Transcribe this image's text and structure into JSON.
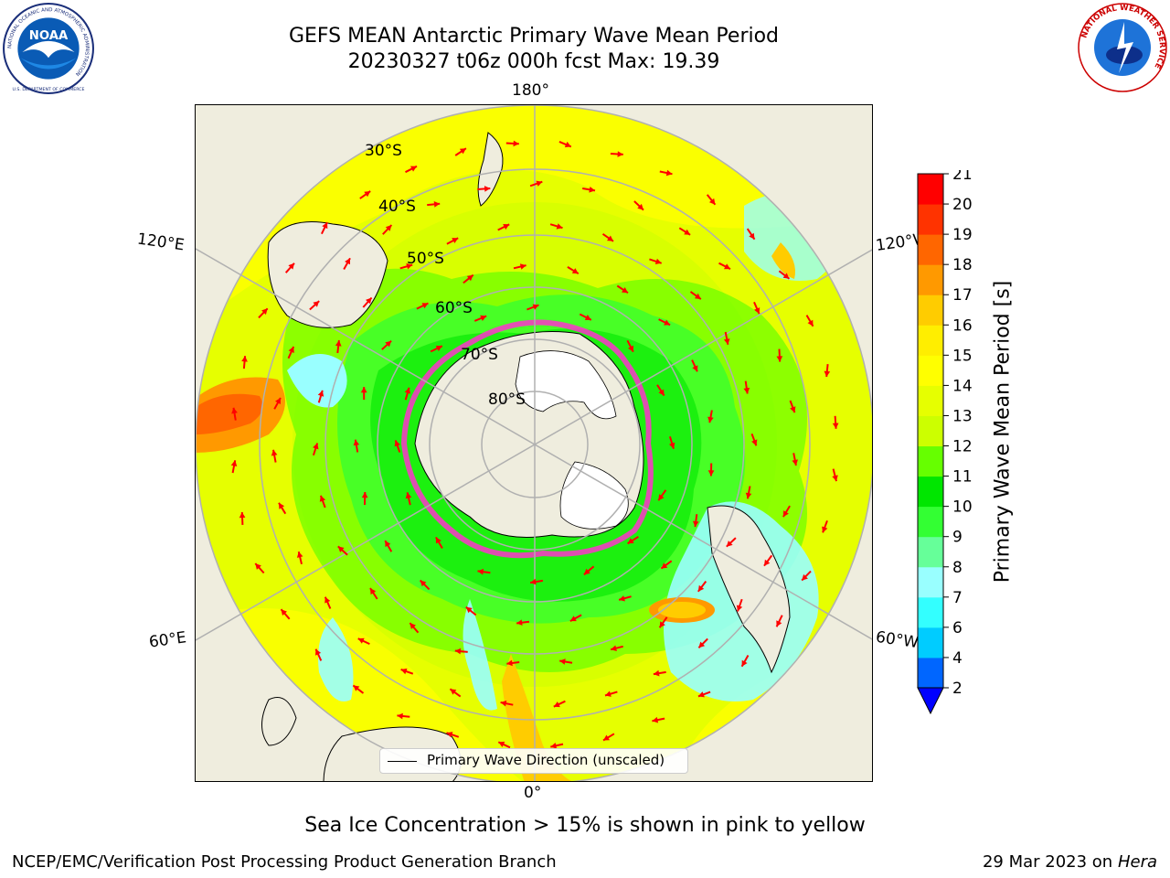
{
  "header": {
    "title_line1": "GEFS MEAN Antarctic Primary Wave Mean Period",
    "title_line2": "20230327 t06z 000h fcst   Max: 19.39"
  },
  "logos": {
    "left": "NOAA",
    "left_ring_text": "NATIONAL OCEANIC AND ATMOSPHERIC ADMINISTRATION",
    "left_ring_text_bottom": "U.S. DEPARTMENT OF COMMERCE",
    "right_ring_text": "NATIONAL WEATHER SERVICE"
  },
  "map": {
    "projection": "south-polar-stereographic",
    "lon_labels": {
      "top": "180°",
      "bottom": "0°",
      "left_upper": "120°E",
      "left_lower": "60°E",
      "right_upper": "120°W",
      "right_lower": "60°W"
    },
    "lat_labels": [
      "30°S",
      "40°S",
      "50°S",
      "60°S",
      "70°S",
      "80°S"
    ],
    "field_colors": {
      "ocean_base": "#e6ff00",
      "land": "#efedde",
      "ice_free_polar": "#ffffff",
      "sea_ice": "#ff33cc",
      "arrows": "#ff0000",
      "grid": "#b0b0b0"
    },
    "legend_label": "Primary Wave Direction (unscaled)"
  },
  "colorbar": {
    "label": "Primary Wave Mean Period [s]",
    "ticks": [
      "2",
      "4",
      "6",
      "7",
      "8",
      "9",
      "10",
      "11",
      "12",
      "13",
      "14",
      "15",
      "16",
      "17",
      "18",
      "19",
      "20",
      "21"
    ],
    "colors": [
      "#0066ff",
      "#00ccff",
      "#33ffff",
      "#99ffff",
      "#66ff99",
      "#33ff33",
      "#00e600",
      "#66ff00",
      "#ccff00",
      "#e6ff00",
      "#ffff00",
      "#ffee00",
      "#ffcc00",
      "#ff9900",
      "#ff6600",
      "#ff3300",
      "#ff0000"
    ],
    "under_color": "#0000ff",
    "extend": "min"
  },
  "notes": {
    "sea_ice": "Sea Ice Concentration > 15% is shown in pink to yellow"
  },
  "footer": {
    "left": "NCEP/EMC/Verification Post Processing Product Generation Branch",
    "right_date": "29 Mar 2023 on",
    "right_host": "Hera"
  }
}
